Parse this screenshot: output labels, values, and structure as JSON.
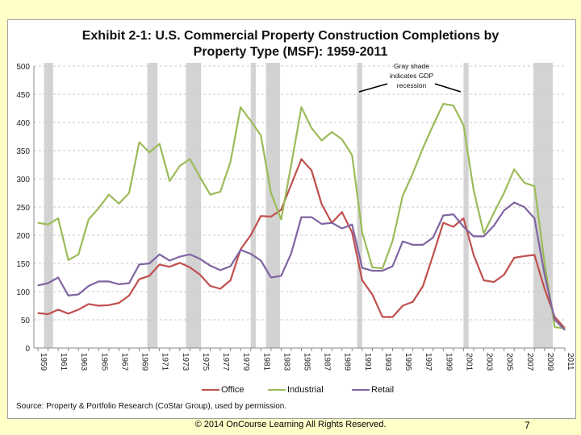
{
  "chart_data": {
    "type": "line",
    "title_line1": "Exhibit 2-1: U.S. Commercial Property Construction Completions by",
    "title_line2": "Property Type (MSF): 1959-2011",
    "xlabel": "",
    "ylabel": "",
    "ylim": [
      0,
      500
    ],
    "yticks": [
      0,
      50,
      100,
      150,
      200,
      250,
      300,
      350,
      400,
      450,
      500
    ],
    "xlim": [
      1959,
      2011
    ],
    "xtick_labels": [
      "1959",
      "1961",
      "1963",
      "1965",
      "1967",
      "1969",
      "1971",
      "1973",
      "1975",
      "1977",
      "1979",
      "1981",
      "1983",
      "1985",
      "1987",
      "1989",
      "1991",
      "1993",
      "1995",
      "1997",
      "1999",
      "2001",
      "2003",
      "2005",
      "2007",
      "2009",
      "2011"
    ],
    "grid": "horizontal dashed",
    "legend_position": "bottom",
    "x": [
      1959,
      1960,
      1961,
      1962,
      1963,
      1964,
      1965,
      1966,
      1967,
      1968,
      1969,
      1970,
      1971,
      1972,
      1973,
      1974,
      1975,
      1976,
      1977,
      1978,
      1979,
      1980,
      1981,
      1982,
      1983,
      1984,
      1985,
      1986,
      1987,
      1988,
      1989,
      1990,
      1991,
      1992,
      1993,
      1994,
      1995,
      1996,
      1997,
      1998,
      1999,
      2000,
      2001,
      2002,
      2003,
      2004,
      2005,
      2006,
      2007,
      2008,
      2009,
      2010,
      2011
    ],
    "series": [
      {
        "name": "Office",
        "color": "#C0504D",
        "values": [
          62,
          60,
          68,
          61,
          68,
          78,
          75,
          76,
          80,
          93,
          122,
          128,
          148,
          144,
          151,
          143,
          130,
          110,
          105,
          120,
          175,
          200,
          234,
          233,
          245,
          290,
          335,
          315,
          255,
          222,
          241,
          205,
          120,
          95,
          55,
          55,
          75,
          82,
          110,
          165,
          222,
          215,
          230,
          165,
          120,
          117,
          130,
          160,
          163,
          165,
          105,
          55,
          35
        ]
      },
      {
        "name": "Industrial",
        "color": "#9BBB59",
        "values": [
          222,
          219,
          230,
          156,
          166,
          228,
          248,
          272,
          256,
          275,
          365,
          347,
          362,
          296,
          323,
          335,
          303,
          272,
          277,
          330,
          427,
          403,
          377,
          275,
          228,
          325,
          427,
          390,
          368,
          383,
          370,
          342,
          205,
          143,
          141,
          190,
          270,
          310,
          355,
          395,
          433,
          430,
          395,
          280,
          203,
          240,
          275,
          317,
          293,
          287,
          150,
          37,
          35
        ]
      },
      {
        "name": "Retail",
        "color": "#8064A2",
        "values": [
          111,
          115,
          125,
          93,
          95,
          110,
          118,
          118,
          113,
          115,
          148,
          150,
          166,
          155,
          162,
          166,
          158,
          146,
          138,
          145,
          174,
          167,
          155,
          125,
          128,
          168,
          232,
          232,
          220,
          222,
          212,
          219,
          142,
          137,
          137,
          145,
          189,
          183,
          183,
          196,
          235,
          237,
          215,
          198,
          198,
          217,
          244,
          258,
          250,
          230,
          130,
          50,
          32
        ]
      }
    ],
    "recessions": [
      [
        1959.6,
        1960.5
      ],
      [
        1969.8,
        1970.8
      ],
      [
        1973.6,
        1975.1
      ],
      [
        1980.0,
        1980.5
      ],
      [
        1981.5,
        1982.9
      ],
      [
        1990.5,
        1991.0
      ],
      [
        2001.0,
        2001.5
      ],
      [
        2007.9,
        2009.8
      ]
    ],
    "recession_color": "#D3D3D3",
    "annotation": [
      "Gray shade",
      "indicates GDP",
      "recession"
    ],
    "source": "Source: Property & Portfolio Research (CoStar Group), used by permission."
  },
  "footer": {
    "copyright": "© 2014 OnCourse Learning  All Rights Reserved.",
    "page": "7"
  }
}
